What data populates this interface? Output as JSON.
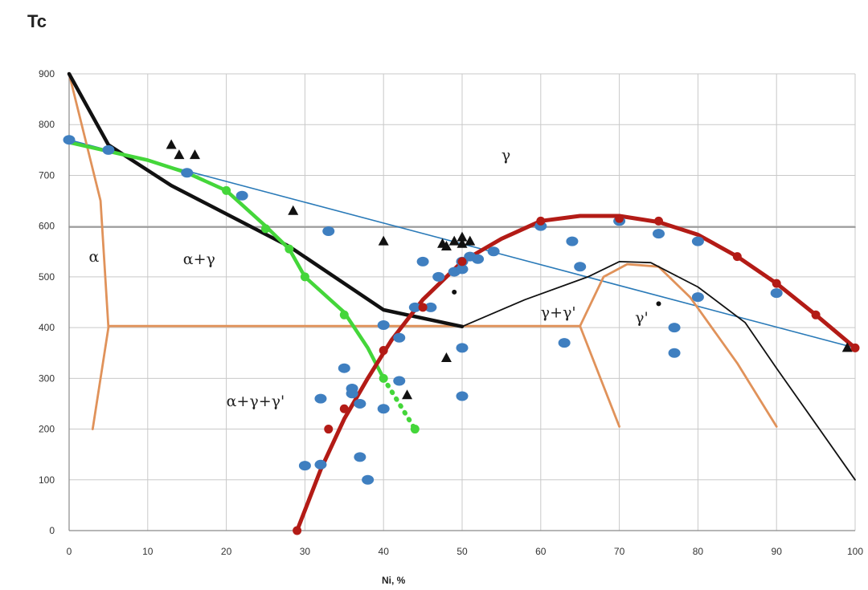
{
  "chart_data": {
    "type": "scatter",
    "title": "",
    "ylabel": "Tc",
    "xlabel": "Ni, %",
    "xlim": [
      0,
      100
    ],
    "ylim": [
      0,
      900
    ],
    "x_ticks": [
      0,
      10,
      20,
      30,
      40,
      50,
      60,
      70,
      80,
      90,
      100
    ],
    "y_ticks": [
      0,
      100,
      200,
      300,
      400,
      500,
      600,
      700,
      800,
      900
    ],
    "grid": true,
    "region_labels": [
      {
        "text": "α",
        "x": 2.5,
        "y": 530
      },
      {
        "text": "α+γ",
        "x": 14.5,
        "y": 525
      },
      {
        "text": "γ",
        "x": 55,
        "y": 730
      },
      {
        "text": "γ+γ'",
        "x": 60,
        "y": 420
      },
      {
        "text": "γ'",
        "x": 72,
        "y": 410
      },
      {
        "text": "α+γ+γ'",
        "x": 20,
        "y": 245
      }
    ],
    "lines": [
      {
        "key": "black_thick",
        "color": "#111111",
        "width": 4.5,
        "points": [
          [
            0,
            900
          ],
          [
            5,
            760
          ],
          [
            13,
            680
          ],
          [
            28,
            560
          ],
          [
            40,
            435
          ],
          [
            50,
            402
          ]
        ]
      },
      {
        "key": "black_thin",
        "color": "#111111",
        "width": 1.8,
        "points": [
          [
            50,
            402
          ],
          [
            58,
            455
          ],
          [
            66,
            500
          ],
          [
            70,
            530
          ],
          [
            74,
            528
          ],
          [
            80,
            480
          ],
          [
            86,
            410
          ],
          [
            90,
            320
          ],
          [
            95,
            210
          ],
          [
            100,
            100
          ]
        ]
      },
      {
        "key": "blue_line",
        "color": "#2a7ab8",
        "width": 1.6,
        "points": [
          [
            0,
            770
          ],
          [
            100,
            360
          ]
        ]
      },
      {
        "key": "gray_600",
        "color": "#909090",
        "width": 1.6,
        "points": [
          [
            0,
            598
          ],
          [
            100,
            598
          ]
        ]
      },
      {
        "key": "orange_alpha",
        "color": "#e0925a",
        "width": 2.8,
        "points": [
          [
            0,
            900
          ],
          [
            4,
            650
          ],
          [
            5,
            400
          ],
          [
            3,
            200
          ]
        ]
      },
      {
        "key": "orange_400",
        "color": "#e0925a",
        "width": 2.8,
        "points": [
          [
            5,
            403
          ],
          [
            65,
            403
          ]
        ]
      },
      {
        "key": "orange_gp1",
        "color": "#e0925a",
        "width": 2.8,
        "points": [
          [
            65,
            403
          ],
          [
            70,
            205
          ]
        ]
      },
      {
        "key": "orange_dome",
        "color": "#e0925a",
        "width": 2.8,
        "points": [
          [
            65,
            403
          ],
          [
            68,
            500
          ],
          [
            71,
            525
          ],
          [
            75,
            520
          ],
          [
            79,
            460
          ],
          [
            85,
            330
          ],
          [
            90,
            205
          ]
        ]
      },
      {
        "key": "green",
        "color": "#44d63a",
        "width": 4.5,
        "points": [
          [
            0,
            765
          ],
          [
            10,
            730
          ],
          [
            15,
            705
          ],
          [
            20,
            670
          ],
          [
            25,
            600
          ],
          [
            28,
            555
          ],
          [
            30,
            500
          ],
          [
            35,
            430
          ],
          [
            38,
            360
          ],
          [
            40,
            300
          ]
        ]
      },
      {
        "key": "green_dotted",
        "color": "#44d63a",
        "width": 4.5,
        "dashed": true,
        "points": [
          [
            40,
            300
          ],
          [
            42,
            250
          ],
          [
            44,
            200
          ]
        ]
      },
      {
        "key": "red",
        "color": "#b31b16",
        "width": 5,
        "points": [
          [
            29,
            0
          ],
          [
            32,
            120
          ],
          [
            35,
            220
          ],
          [
            38,
            300
          ],
          [
            41,
            375
          ],
          [
            45,
            455
          ],
          [
            50,
            530
          ],
          [
            55,
            575
          ],
          [
            60,
            610
          ],
          [
            65,
            620
          ],
          [
            70,
            620
          ],
          [
            75,
            608
          ],
          [
            80,
            583
          ],
          [
            85,
            540
          ],
          [
            90,
            487
          ],
          [
            95,
            425
          ],
          [
            100,
            360
          ]
        ]
      }
    ],
    "series": [
      {
        "marker": "ellipse",
        "color": "#3f7fc0",
        "points": [
          [
            0,
            770
          ],
          [
            5,
            750
          ],
          [
            15,
            705
          ],
          [
            22,
            660
          ],
          [
            33,
            590
          ],
          [
            40,
            405
          ],
          [
            42,
            380
          ],
          [
            36,
            280
          ],
          [
            36,
            270
          ],
          [
            37,
            250
          ],
          [
            35,
            320
          ],
          [
            32,
            260
          ],
          [
            30,
            128
          ],
          [
            32,
            130
          ],
          [
            37,
            145
          ],
          [
            38,
            100
          ],
          [
            40,
            240
          ],
          [
            42,
            295
          ],
          [
            44,
            440
          ],
          [
            45,
            530
          ],
          [
            46,
            440
          ],
          [
            47,
            500
          ],
          [
            49,
            510
          ],
          [
            50,
            515
          ],
          [
            50,
            530
          ],
          [
            51,
            540
          ],
          [
            52,
            535
          ],
          [
            54,
            550
          ],
          [
            50,
            360
          ],
          [
            50,
            265
          ],
          [
            60,
            600
          ],
          [
            63,
            370
          ],
          [
            64,
            570
          ],
          [
            65,
            520
          ],
          [
            70,
            610
          ],
          [
            75,
            585
          ],
          [
            77,
            400
          ],
          [
            77,
            350
          ],
          [
            80,
            570
          ],
          [
            80,
            460
          ],
          [
            90,
            468
          ]
        ]
      },
      {
        "marker": "triangle",
        "color": "#111111",
        "points": [
          [
            13,
            760
          ],
          [
            14,
            740
          ],
          [
            16,
            740
          ],
          [
            28.5,
            630
          ],
          [
            40,
            570
          ],
          [
            47.5,
            565
          ],
          [
            48,
            560
          ],
          [
            49,
            570
          ],
          [
            50,
            578
          ],
          [
            50,
            565
          ],
          [
            51,
            570
          ],
          [
            48,
            340
          ],
          [
            43,
            267
          ],
          [
            99,
            360
          ]
        ]
      },
      {
        "marker": "dot",
        "color": "#b31b16",
        "points": [
          [
            29,
            0
          ],
          [
            33,
            200
          ],
          [
            35,
            240
          ],
          [
            40,
            355
          ],
          [
            45,
            440
          ],
          [
            50,
            530
          ],
          [
            60,
            610
          ],
          [
            70,
            615
          ],
          [
            75,
            610
          ],
          [
            85,
            540
          ],
          [
            90,
            487
          ],
          [
            95,
            425
          ],
          [
            100,
            360
          ]
        ]
      },
      {
        "marker": "dot",
        "color": "#44d63a",
        "points": [
          [
            20,
            670
          ],
          [
            25,
            595
          ],
          [
            28,
            555
          ],
          [
            30,
            500
          ],
          [
            35,
            425
          ],
          [
            40,
            300
          ],
          [
            44,
            200
          ]
        ]
      },
      {
        "marker": "small-dot",
        "color": "#111111",
        "points": [
          [
            49,
            470
          ],
          [
            75,
            447
          ]
        ]
      }
    ]
  }
}
